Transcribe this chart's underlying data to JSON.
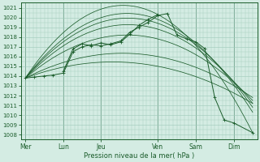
{
  "xlabel": "Pression niveau de la mer( hPa )",
  "ylim": [
    1007.5,
    1021.5
  ],
  "yticks": [
    1008,
    1009,
    1010,
    1011,
    1012,
    1013,
    1014,
    1015,
    1016,
    1017,
    1018,
    1019,
    1020,
    1021
  ],
  "day_labels": [
    "Mer",
    "Lun",
    "Jeu",
    "Ven",
    "Sam",
    "Dim"
  ],
  "day_x": [
    0.0,
    0.167,
    0.333,
    0.583,
    0.75,
    0.917
  ],
  "bg_color": "#d4ece3",
  "grid_color": "#9ec9b8",
  "line_color": "#1a5c2a",
  "vline_color": "#5a8c72",
  "fan_lines": [
    {
      "x": [
        0.0,
        0.583,
        1.0
      ],
      "y": [
        1013.8,
        1020.3,
        1008.2
      ]
    },
    {
      "x": [
        0.0,
        0.583,
        1.0
      ],
      "y": [
        1013.8,
        1019.8,
        1010.3
      ]
    },
    {
      "x": [
        0.0,
        0.583,
        1.0
      ],
      "y": [
        1013.8,
        1019.4,
        1010.8
      ]
    },
    {
      "x": [
        0.0,
        0.583,
        1.0
      ],
      "y": [
        1013.8,
        1018.8,
        1011.2
      ]
    },
    {
      "x": [
        0.0,
        0.583,
        1.0
      ],
      "y": [
        1013.8,
        1017.8,
        1011.5
      ]
    },
    {
      "x": [
        0.0,
        0.583,
        1.0
      ],
      "y": [
        1013.8,
        1016.0,
        1011.8
      ]
    },
    {
      "x": [
        0.0,
        0.583,
        1.0
      ],
      "y": [
        1013.8,
        1015.0,
        1011.2
      ]
    }
  ],
  "detail_lines": [
    {
      "x": [
        0.0,
        0.04,
        0.08,
        0.12,
        0.167,
        0.21,
        0.25,
        0.29,
        0.333,
        0.375,
        0.42,
        0.46,
        0.5,
        0.54,
        0.583,
        0.625,
        0.667,
        0.71,
        0.75,
        0.79,
        0.833,
        0.875,
        0.917,
        1.0
      ],
      "y": [
        1013.8,
        1013.9,
        1014.0,
        1014.1,
        1014.3,
        1016.5,
        1017.0,
        1017.2,
        1017.1,
        1017.3,
        1017.6,
        1018.5,
        1019.0,
        1019.5,
        1020.2,
        1020.4,
        1018.2,
        1017.8,
        1017.5,
        1016.8,
        1011.8,
        1009.5,
        1009.2,
        1008.2
      ],
      "marker": true
    },
    {
      "x": [
        0.167,
        0.21,
        0.25,
        0.29,
        0.333,
        0.375,
        0.42,
        0.46,
        0.5,
        0.54,
        0.583
      ],
      "y": [
        1014.5,
        1016.8,
        1017.3,
        1017.1,
        1017.4,
        1017.2,
        1017.5,
        1018.3,
        1019.2,
        1019.8,
        1020.3
      ],
      "marker": true
    }
  ]
}
